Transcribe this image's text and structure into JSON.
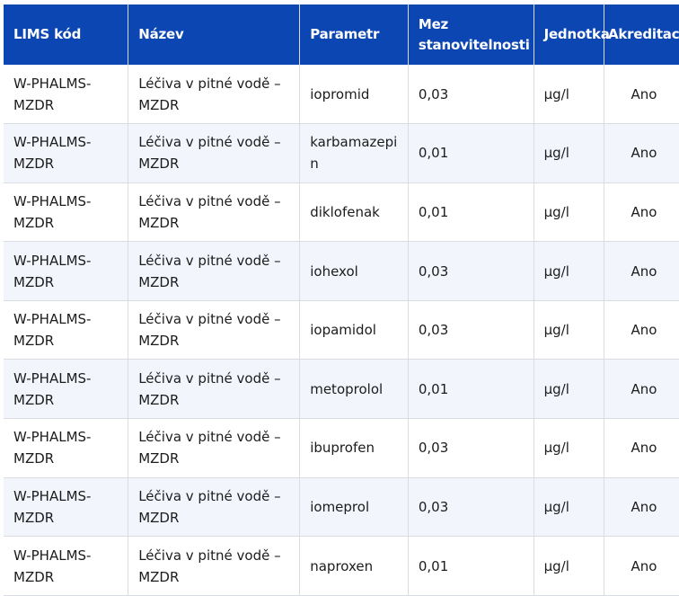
{
  "table": {
    "headers": [
      "LIMS kód",
      "Název",
      "Parametr",
      "Mez stanovitelnosti",
      "Jednotka",
      "Akreditace"
    ],
    "rows": [
      {
        "code": "W-PHALMS-MZDR",
        "name": "Léčiva v pitné vodě – MZDR",
        "param": "iopromid",
        "limit": "0,03",
        "unit": "µg/l",
        "accr": "Ano"
      },
      {
        "code": "W-PHALMS-MZDR",
        "name": "Léčiva v pitné vodě – MZDR",
        "param": "karbamazepin",
        "limit": "0,01",
        "unit": "µg/l",
        "accr": "Ano"
      },
      {
        "code": "W-PHALMS-MZDR",
        "name": "Léčiva v pitné vodě – MZDR",
        "param": "diklofenak",
        "limit": "0,01",
        "unit": "µg/l",
        "accr": "Ano"
      },
      {
        "code": "W-PHALMS-MZDR",
        "name": "Léčiva v pitné vodě – MZDR",
        "param": "iohexol",
        "limit": "0,03",
        "unit": "µg/l",
        "accr": "Ano"
      },
      {
        "code": "W-PHALMS-MZDR",
        "name": "Léčiva v pitné vodě – MZDR",
        "param": "iopamidol",
        "limit": "0,03",
        "unit": "µg/l",
        "accr": "Ano"
      },
      {
        "code": "W-PHALMS-MZDR",
        "name": "Léčiva v pitné vodě – MZDR",
        "param": "metoprolol",
        "limit": "0,01",
        "unit": "µg/l",
        "accr": "Ano"
      },
      {
        "code": "W-PHALMS-MZDR",
        "name": "Léčiva v pitné vodě – MZDR",
        "param": "ibuprofen",
        "limit": "0,03",
        "unit": "µg/l",
        "accr": "Ano"
      },
      {
        "code": "W-PHALMS-MZDR",
        "name": "Léčiva v pitné vodě – MZDR",
        "param": "iomeprol",
        "limit": "0,03",
        "unit": "µg/l",
        "accr": "Ano"
      },
      {
        "code": "W-PHALMS-MZDR",
        "name": "Léčiva v pitné vodě – MZDR",
        "param": "naproxen",
        "limit": "0,01",
        "unit": "µg/l",
        "accr": "Ano"
      }
    ]
  }
}
